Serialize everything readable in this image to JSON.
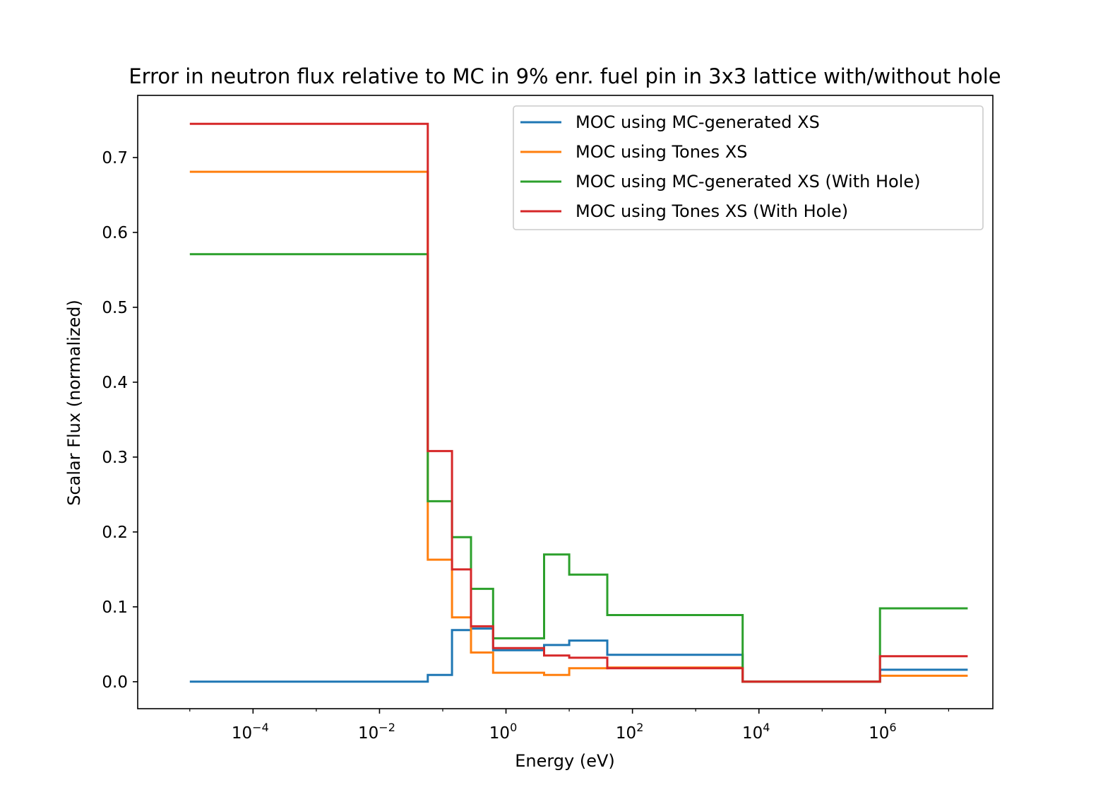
{
  "chart_data": {
    "type": "line",
    "step": "post",
    "title": "Error in neutron flux relative to MC in 9% enr. fuel pin in 3x3 lattice with/without hole",
    "xlabel": "Energy (eV)",
    "ylabel": "Scalar Flux (normalized)",
    "xscale": "log",
    "xlim": [
      1.5e-06,
      50000000.0
    ],
    "ylim": [
      -0.036,
      0.783
    ],
    "xticks": [
      {
        "base": "10",
        "exp": "−4",
        "value": 0.0001
      },
      {
        "base": "10",
        "exp": "−2",
        "value": 0.01
      },
      {
        "base": "10",
        "exp": "0",
        "value": 1
      },
      {
        "base": "10",
        "exp": "2",
        "value": 100
      },
      {
        "base": "10",
        "exp": "4",
        "value": 10000
      },
      {
        "base": "10",
        "exp": "6",
        "value": 1000000
      }
    ],
    "yticks": [
      "0.0",
      "0.1",
      "0.2",
      "0.3",
      "0.4",
      "0.5",
      "0.6",
      "0.7"
    ],
    "grid": false,
    "legend_position": "upper-right",
    "bin_edges_eV": [
      1e-05,
      0.058,
      0.14,
      0.28,
      0.625,
      4.0,
      10.0,
      40.0,
      5530,
      821000,
      20000000
    ],
    "series": [
      {
        "name": "MOC using MC-generated XS",
        "color": "#1f77b4",
        "values": [
          0.0,
          0.009,
          0.069,
          0.071,
          0.042,
          0.049,
          0.055,
          0.036,
          0.0,
          0.016
        ]
      },
      {
        "name": "MOC using Tones XS",
        "color": "#ff7f0e",
        "values": [
          0.681,
          0.163,
          0.086,
          0.039,
          0.012,
          0.009,
          0.018,
          0.019,
          0.0,
          0.008
        ]
      },
      {
        "name": "MOC using MC-generated XS (With Hole)",
        "color": "#2ca02c",
        "values": [
          0.571,
          0.241,
          0.193,
          0.124,
          0.058,
          0.17,
          0.143,
          0.089,
          0.0,
          0.098
        ]
      },
      {
        "name": "MOC using Tones XS (With Hole)",
        "color": "#d62728",
        "values": [
          0.745,
          0.308,
          0.15,
          0.074,
          0.045,
          0.035,
          0.032,
          0.018,
          0.0,
          0.034
        ]
      }
    ]
  }
}
